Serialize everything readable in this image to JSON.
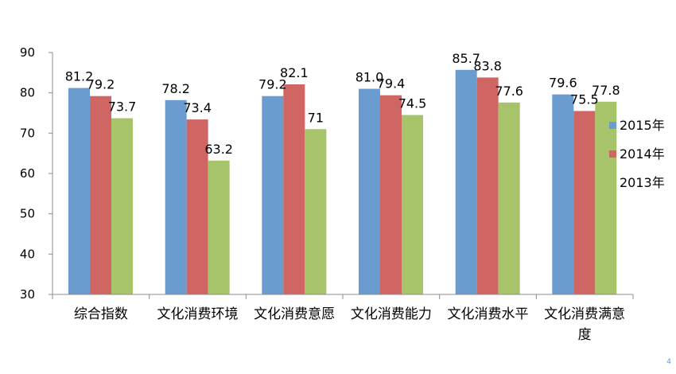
{
  "chart_data": {
    "type": "bar",
    "categories": [
      "综合指数",
      "文化消费环境",
      "文化消费意愿",
      "文化消费能力",
      "文化消费水平",
      "文化消费满意度"
    ],
    "series": [
      {
        "name": "2015年",
        "values": [
          81.2,
          78.2,
          79.2,
          81.0,
          85.7,
          79.6
        ],
        "labels": [
          "81.2",
          "78.2",
          "79.2",
          "81.0",
          "85.7",
          "79.6"
        ],
        "color": "#6a9ccf"
      },
      {
        "name": "2014年",
        "values": [
          79.2,
          73.4,
          82.1,
          79.4,
          83.8,
          75.5
        ],
        "labels": [
          "79.2",
          "73.4",
          "82.1",
          "79.4",
          "83.8",
          "75.5"
        ],
        "color": "#cf6663"
      },
      {
        "name": "2013年",
        "values": [
          73.7,
          63.2,
          71,
          74.5,
          77.6,
          77.8
        ],
        "labels": [
          "73.7",
          "63.2",
          "71",
          "74.5",
          "77.6",
          "77.8"
        ],
        "color": "#a8c46b"
      }
    ],
    "ylim": [
      30,
      90
    ],
    "yticks": [
      "30",
      "40",
      "50",
      "60",
      "70",
      "80",
      "90"
    ],
    "grid": false,
    "legend_position": "right"
  },
  "page_mark": "4"
}
